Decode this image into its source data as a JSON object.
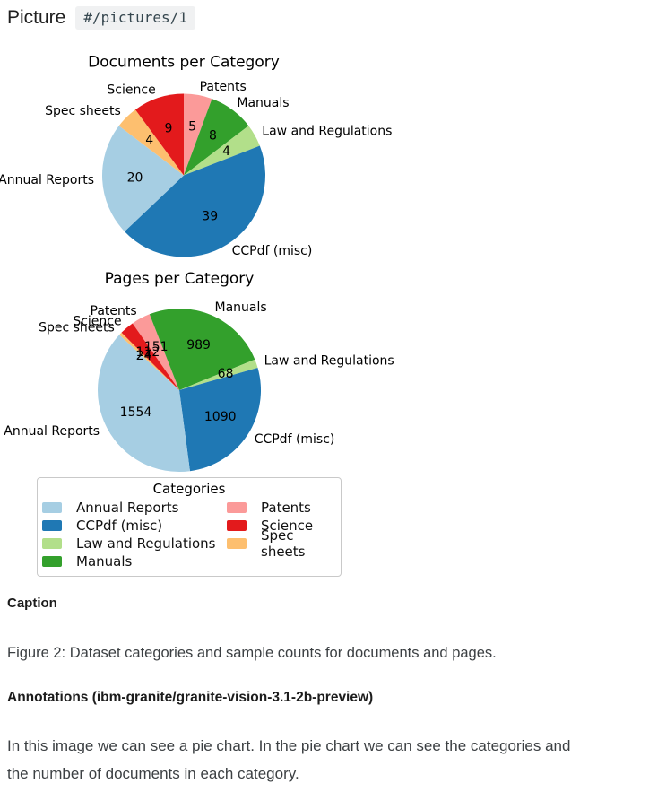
{
  "header": {
    "title": "Picture",
    "path": "#/pictures/1"
  },
  "chart_data": [
    {
      "type": "pie",
      "title": "Documents per Category",
      "start_angle": 90,
      "clockwise": true,
      "slices": [
        {
          "label": "Patents",
          "value": 5,
          "color": "#fb9a99"
        },
        {
          "label": "Manuals",
          "value": 8,
          "color": "#33a02c"
        },
        {
          "label": "Law and Regulations",
          "value": 4,
          "color": "#b2df8a"
        },
        {
          "label": "CCPdf (misc)",
          "value": 39,
          "color": "#1f78b4"
        },
        {
          "label": "Annual Reports",
          "value": 20,
          "color": "#a6cee3"
        },
        {
          "label": "Spec sheets",
          "value": 4,
          "color": "#fdbf6f"
        },
        {
          "label": "Science",
          "value": 9,
          "color": "#e31a1c"
        }
      ]
    },
    {
      "type": "pie",
      "title": "Pages per Category",
      "start_angle": 125,
      "clockwise": true,
      "slices": [
        {
          "label": "Patents",
          "value": 151,
          "color": "#fb9a99"
        },
        {
          "label": "Manuals",
          "value": 989,
          "color": "#33a02c"
        },
        {
          "label": "Law and Regulations",
          "value": 68,
          "color": "#b2df8a"
        },
        {
          "label": "CCPdf (misc)",
          "value": 1090,
          "color": "#1f78b4"
        },
        {
          "label": "Annual Reports",
          "value": 1554,
          "color": "#a6cee3"
        },
        {
          "label": "Spec sheets",
          "value": 24,
          "color": "#fdbf6f"
        },
        {
          "label": "Science",
          "value": 112,
          "color": "#e31a1c"
        }
      ]
    }
  ],
  "legend": {
    "title": "Categories",
    "entries": [
      {
        "label": "Annual Reports",
        "color": "#a6cee3"
      },
      {
        "label": "CCPdf (misc)",
        "color": "#1f78b4"
      },
      {
        "label": "Law and Regulations",
        "color": "#b2df8a"
      },
      {
        "label": "Manuals",
        "color": "#33a02c"
      },
      {
        "label": "Patents",
        "color": "#fb9a99"
      },
      {
        "label": "Science",
        "color": "#e31a1c"
      },
      {
        "label": "Spec sheets",
        "color": "#fdbf6f"
      }
    ]
  },
  "caption": {
    "heading": "Caption",
    "text": "Figure 2: Dataset categories and sample counts for documents and pages."
  },
  "annotations": {
    "heading": "Annotations (ibm-granite/granite-vision-3.1-2b-preview)",
    "lines": [
      "In this image we can see a pie chart. In the pie chart we can see the categories and",
      "the number of documents in each category."
    ]
  }
}
